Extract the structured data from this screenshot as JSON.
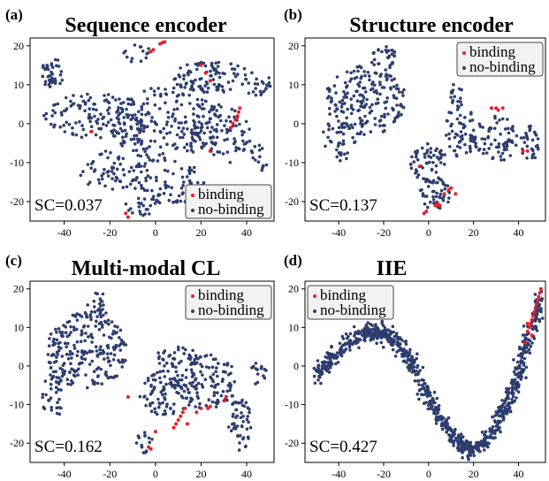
{
  "colors": {
    "binding": "#e8202a",
    "no_binding": "#2d3d6e",
    "legend_bg": "#f2f2f2"
  },
  "legend": {
    "binding": "binding",
    "no_binding": "no-binding"
  },
  "chart_data": [
    {
      "type": "scatter",
      "panel_label": "(a)",
      "title": "Sequence encoder",
      "annotation": "SC=0.037",
      "xlim": [
        -55,
        52
      ],
      "ylim": [
        -25,
        22
      ],
      "xticks": [
        -40,
        -20,
        0,
        20,
        40
      ],
      "yticks": [
        -20,
        -10,
        0,
        10,
        20
      ],
      "legend_position": "bottom-right",
      "series": [
        {
          "name": "binding",
          "points": [
            [
              -2,
              18.5
            ],
            [
              -1,
              19
            ],
            [
              2,
              20.5
            ],
            [
              3,
              20.8
            ],
            [
              4,
              21
            ],
            [
              20,
              15
            ],
            [
              22,
              13
            ],
            [
              24,
              11
            ],
            [
              33,
              -1
            ],
            [
              34,
              0
            ],
            [
              35,
              1
            ],
            [
              36,
              2
            ],
            [
              36.5,
              3
            ],
            [
              37,
              4
            ],
            [
              -28,
              -2
            ],
            [
              24,
              -7
            ],
            [
              -12,
              -24
            ],
            [
              -13,
              -23
            ]
          ]
        },
        {
          "name": "no-binding",
          "regions": [
            {
              "cx": -45,
              "cy": 13,
              "rx": 5,
              "ry": 4,
              "n": 40
            },
            {
              "cx": -8,
              "cy": 18,
              "rx": 6,
              "ry": 2.5,
              "n": 14
            },
            {
              "cx": 25,
              "cy": 12,
              "rx": 18,
              "ry": 4,
              "n": 100
            },
            {
              "cx": 45,
              "cy": 10,
              "rx": 6,
              "ry": 3,
              "n": 20
            },
            {
              "cx": -25,
              "cy": 2,
              "rx": 24,
              "ry": 6,
              "n": 130
            },
            {
              "cx": 5,
              "cy": 0,
              "rx": 25,
              "ry": 10,
              "n": 210
            },
            {
              "cx": 28,
              "cy": -3,
              "rx": 14,
              "ry": 8,
              "n": 80
            },
            {
              "cx": -20,
              "cy": -12,
              "rx": 14,
              "ry": 5,
              "n": 60
            },
            {
              "cx": 5,
              "cy": -15,
              "rx": 18,
              "ry": 6,
              "n": 80
            },
            {
              "cx": -5,
              "cy": -22,
              "rx": 12,
              "ry": 2,
              "n": 18
            },
            {
              "cx": 45,
              "cy": -10,
              "rx": 4,
              "ry": 5,
              "n": 15
            }
          ]
        }
      ]
    },
    {
      "type": "scatter",
      "panel_label": "(b)",
      "title": "Structure encoder",
      "annotation": "SC=0.137",
      "xlim": [
        -55,
        52
      ],
      "ylim": [
        -25,
        22
      ],
      "xticks": [
        -40,
        -20,
        0,
        20,
        40
      ],
      "yticks": [
        -20,
        -10,
        0,
        10,
        20
      ],
      "legend_position": "top-right",
      "series": [
        {
          "name": "binding",
          "points": [
            [
              -2,
              -23
            ],
            [
              -1,
              -22.5
            ],
            [
              3,
              -21
            ],
            [
              4,
              -20.5
            ],
            [
              5,
              -21
            ],
            [
              7,
              -18
            ],
            [
              9,
              -17
            ],
            [
              10,
              -16.5
            ],
            [
              12,
              -18
            ],
            [
              -4,
              -11
            ],
            [
              28,
              4
            ],
            [
              30,
              4
            ],
            [
              31,
              3.5
            ],
            [
              33,
              4
            ],
            [
              42,
              -7
            ],
            [
              44,
              -7
            ]
          ]
        },
        {
          "name": "no-binding",
          "regions": [
            {
              "cx": -28,
              "cy": 6,
              "rx": 18,
              "ry": 9,
              "n": 190
            },
            {
              "cx": -20,
              "cy": 17,
              "rx": 6,
              "ry": 3,
              "n": 30
            },
            {
              "cx": -40,
              "cy": -4,
              "rx": 8,
              "ry": 6,
              "n": 40
            },
            {
              "cx": 0,
              "cy": -10,
              "rx": 8,
              "ry": 5,
              "n": 60
            },
            {
              "cx": 3,
              "cy": -18,
              "rx": 7,
              "ry": 4,
              "n": 45
            },
            {
              "cx": 14,
              "cy": -2,
              "rx": 7,
              "ry": 7,
              "n": 55
            },
            {
              "cx": 30,
              "cy": -4,
              "rx": 10,
              "ry": 6,
              "n": 70
            },
            {
              "cx": 12,
              "cy": 8,
              "rx": 3,
              "ry": 4,
              "n": 15
            },
            {
              "cx": 45,
              "cy": -5,
              "rx": 4,
              "ry": 5,
              "n": 30
            }
          ]
        }
      ]
    },
    {
      "type": "scatter",
      "panel_label": "(c)",
      "title": "Multi-modal CL",
      "annotation": "SC=0.162",
      "xlim": [
        -55,
        52
      ],
      "ylim": [
        -25,
        22
      ],
      "xticks": [
        -40,
        -20,
        0,
        20,
        40
      ],
      "yticks": [
        -20,
        -10,
        0,
        10,
        20
      ],
      "legend_position": "top-right",
      "series": [
        {
          "name": "binding",
          "points": [
            [
              -3,
              -21
            ],
            [
              -2,
              -21.5
            ],
            [
              0,
              -17
            ],
            [
              8,
              -16
            ],
            [
              9,
              -15
            ],
            [
              10,
              -14
            ],
            [
              11,
              -13
            ],
            [
              12,
              -12
            ],
            [
              13,
              -11
            ],
            [
              14,
              -15
            ],
            [
              18,
              -12
            ],
            [
              20,
              -11
            ],
            [
              23,
              -11
            ],
            [
              24,
              -10.5
            ],
            [
              30,
              -9
            ],
            [
              31,
              -8
            ],
            [
              -12,
              -8
            ]
          ]
        },
        {
          "name": "no-binding",
          "regions": [
            {
              "cx": -30,
              "cy": 4,
              "rx": 18,
              "ry": 10,
              "n": 230
            },
            {
              "cx": -25,
              "cy": 16,
              "rx": 5,
              "ry": 3,
              "n": 20
            },
            {
              "cx": -45,
              "cy": -8,
              "rx": 5,
              "ry": 6,
              "n": 35
            },
            {
              "cx": 5,
              "cy": -7,
              "rx": 12,
              "ry": 6,
              "n": 90
            },
            {
              "cx": 22,
              "cy": -4,
              "rx": 14,
              "ry": 7,
              "n": 110
            },
            {
              "cx": 10,
              "cy": 2,
              "rx": 10,
              "ry": 3,
              "n": 40
            },
            {
              "cx": 37,
              "cy": -15,
              "rx": 5,
              "ry": 7,
              "n": 50
            },
            {
              "cx": 45,
              "cy": -2,
              "rx": 4,
              "ry": 3,
              "n": 15
            },
            {
              "cx": -5,
              "cy": -20,
              "rx": 4,
              "ry": 3,
              "n": 15
            }
          ]
        }
      ]
    },
    {
      "type": "scatter",
      "panel_label": "(d)",
      "title": "IIE",
      "annotation": "SC=0.427",
      "xlim": [
        -55,
        52
      ],
      "ylim": [
        -25,
        22
      ],
      "xticks": [
        -40,
        -20,
        0,
        20,
        40
      ],
      "yticks": [
        -20,
        -10,
        0,
        10,
        20
      ],
      "legend_position": "top-left",
      "series": [
        {
          "name": "binding",
          "points": [
            [
              43,
              6
            ],
            [
              44,
              9
            ],
            [
              45,
              10
            ],
            [
              45.5,
              11
            ],
            [
              46,
              12
            ],
            [
              46.5,
              13
            ],
            [
              47,
              14
            ],
            [
              47.5,
              15
            ],
            [
              48,
              16
            ],
            [
              48.5,
              17
            ],
            [
              49,
              18
            ],
            [
              49.5,
              19
            ],
            [
              50,
              20
            ],
            [
              46,
              8
            ],
            [
              44,
              11
            ]
          ]
        },
        {
          "name": "no-binding",
          "curve": {
            "knots": [
              [
                -50,
                -3
              ],
              [
                -40,
                4
              ],
              [
                -30,
                8
              ],
              [
                -22,
                9
              ],
              [
                -15,
                7
              ],
              [
                -8,
                1
              ],
              [
                0,
                -8
              ],
              [
                8,
                -16
              ],
              [
                15,
                -21
              ],
              [
                20,
                -22
              ],
              [
                28,
                -18
              ],
              [
                35,
                -10
              ],
              [
                40,
                -2
              ],
              [
                45,
                8
              ],
              [
                50,
                18
              ]
            ],
            "n": 900,
            "spread": 1.2
          }
        }
      ]
    }
  ]
}
